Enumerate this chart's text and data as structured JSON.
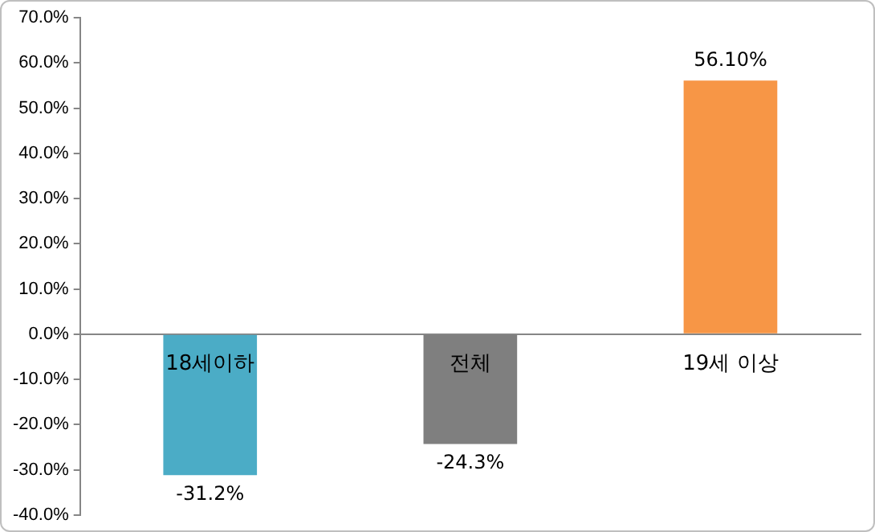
{
  "chart_data": {
    "type": "bar",
    "categories": [
      "18세이하",
      "전체",
      "19세 이상"
    ],
    "values": [
      -31.2,
      -24.3,
      56.1
    ],
    "colors": [
      "#4bacc6",
      "#7f7f7f",
      "#f79646"
    ],
    "value_labels": [
      "-31.2%",
      "-24.3%",
      "56.10%"
    ],
    "ylim": [
      -40,
      70
    ],
    "yticks": [
      {
        "value": -40,
        "label": "-40.0%"
      },
      {
        "value": -30,
        "label": "-30.0%"
      },
      {
        "value": -20,
        "label": "-20.0%"
      },
      {
        "value": -10,
        "label": "-10.0%"
      },
      {
        "value": 0,
        "label": "0.0%"
      },
      {
        "value": 10,
        "label": "10.0%"
      },
      {
        "value": 20,
        "label": "20.0%"
      },
      {
        "value": 30,
        "label": "30.0%"
      },
      {
        "value": 40,
        "label": "40.0%"
      },
      {
        "value": 50,
        "label": "50.0%"
      },
      {
        "value": 60,
        "label": "60.0%"
      },
      {
        "value": 70,
        "label": "70.0%"
      }
    ],
    "grid": false,
    "legend": false
  }
}
